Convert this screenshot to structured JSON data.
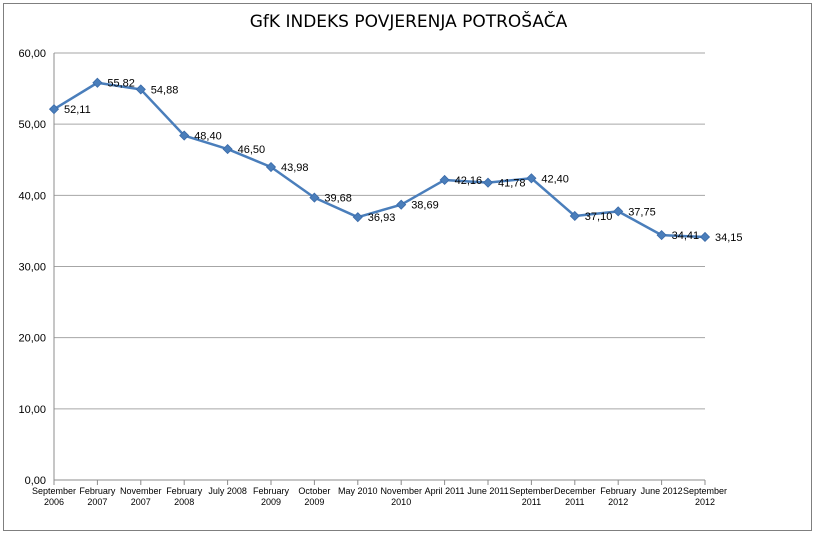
{
  "chart_data": {
    "type": "line",
    "title": "GfK INDEKS POVJERENJA POTROŠAČA",
    "xlabel": "",
    "ylabel": "",
    "ylim": [
      0,
      60
    ],
    "yticks": [
      "0,00",
      "10,00",
      "20,00",
      "30,00",
      "40,00",
      "50,00",
      "60,00"
    ],
    "grid": true,
    "legend": "none",
    "categories": [
      "September 2006",
      "February 2007",
      "November 2007",
      "February 2008",
      "July 2008",
      "February 2009",
      "October 2009",
      "May 2010",
      "November 2010",
      "April 2011",
      "June 2011",
      "September 2011",
      "December 2011",
      "February 2012",
      "June 2012",
      "September 2012"
    ],
    "series": [
      {
        "values": [
          52.11,
          55.82,
          54.88,
          48.4,
          46.5,
          43.98,
          39.68,
          36.93,
          38.69,
          42.16,
          41.78,
          42.4,
          37.1,
          37.75,
          34.41,
          34.15
        ],
        "labels": [
          "52,11",
          "55,82",
          "54,88",
          "48,40",
          "46,50",
          "43,98",
          "39,68",
          "36,93",
          "38,69",
          "42,16",
          "41,78",
          "42,40",
          "37,10",
          "37,75",
          "34,41",
          "34,15"
        ],
        "color": "#4a7ebb"
      }
    ]
  }
}
